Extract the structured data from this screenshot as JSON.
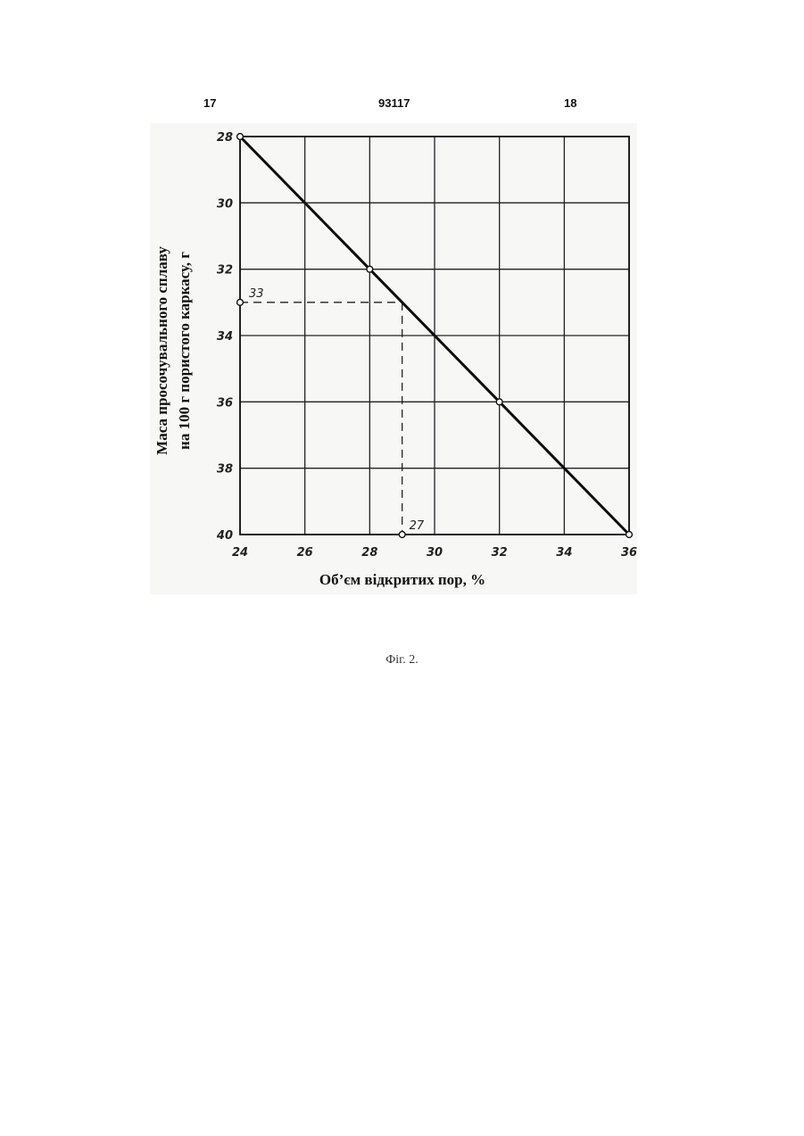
{
  "page": {
    "header_left": "17",
    "header_center": "93117",
    "header_right": "18",
    "caption": "Фіг. 2."
  },
  "chart_data": {
    "type": "line",
    "xlabel": "Об’єм  відкритих пор, %",
    "ylabel_line1": "Маса просочувального сплаву",
    "ylabel_line2": "на 100 г пористого каркасу,  г",
    "xlim": [
      24,
      36
    ],
    "ylim": [
      28,
      40
    ],
    "y_inverted": true,
    "grid": true,
    "x_ticks": [
      "24",
      "26",
      "28",
      "30",
      "32",
      "34",
      "36"
    ],
    "y_ticks": [
      "28",
      "30",
      "32",
      "34",
      "36",
      "38",
      "40"
    ],
    "series": [
      {
        "x": [
          24,
          28,
          32,
          36
        ],
        "y": [
          28,
          32,
          36,
          40
        ]
      }
    ],
    "markers": [
      {
        "x": 24,
        "y": 28
      },
      {
        "x": 28,
        "y": 32
      },
      {
        "x": 32,
        "y": 36
      },
      {
        "x": 36,
        "y": 40
      },
      {
        "x": 24,
        "y": 33
      },
      {
        "x": 29,
        "y": 40
      }
    ],
    "annotations": [
      {
        "text": "33",
        "x": 24,
        "y": 33
      },
      {
        "text": "27",
        "x": 29,
        "y": 40
      }
    ],
    "guide_lines": {
      "horizontal": {
        "from_x": 24,
        "to_x": 29,
        "y": 33
      },
      "vertical": {
        "x": 29,
        "from_y": 33,
        "to_y": 40
      }
    }
  }
}
